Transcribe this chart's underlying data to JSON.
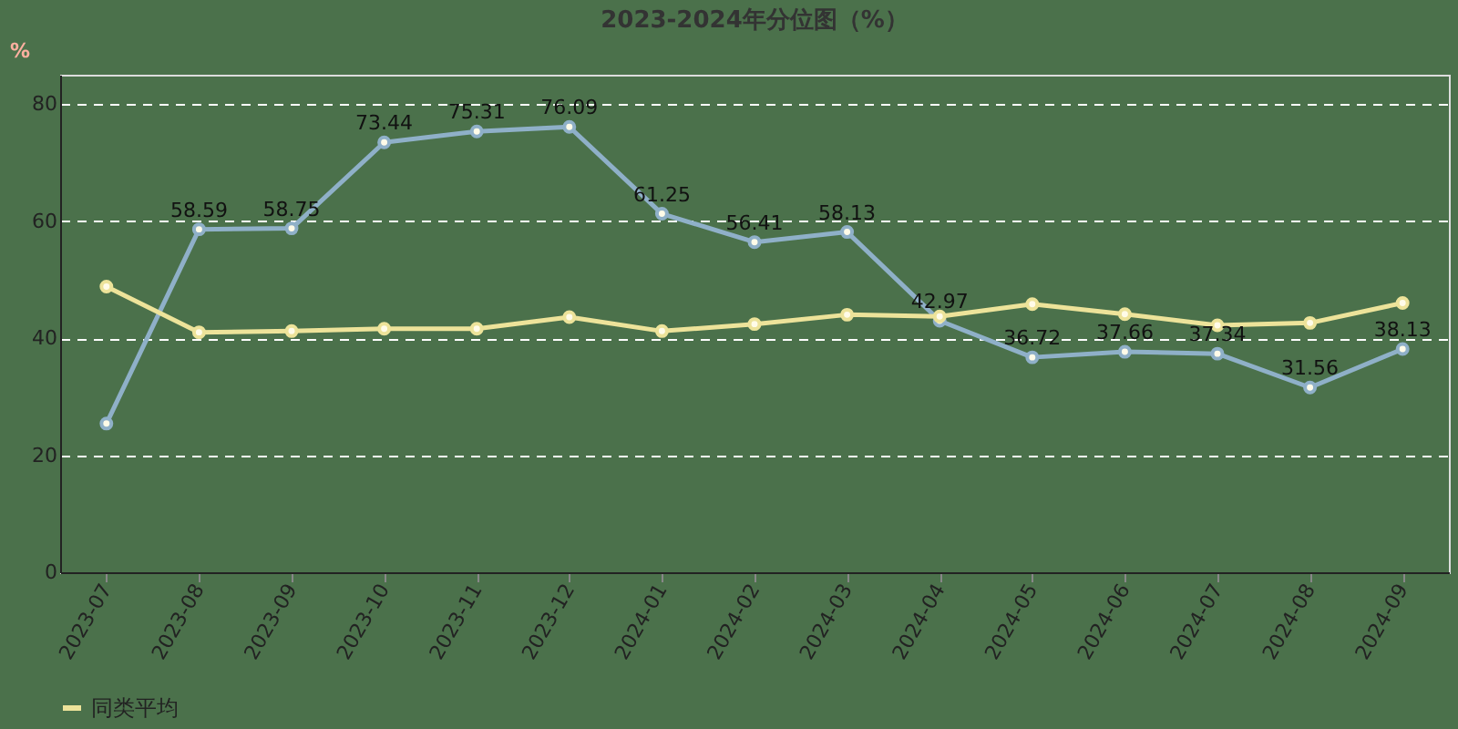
{
  "chart_data": {
    "type": "line",
    "title": "2023-2024年分位图（%）",
    "ylabel": "%",
    "categories": [
      "2023-07",
      "2023-08",
      "2023-09",
      "2023-10",
      "2023-11",
      "2023-12",
      "2024-01",
      "2024-02",
      "2024-03",
      "2024-04",
      "2024-05",
      "2024-06",
      "2024-07",
      "2024-08",
      "2024-09"
    ],
    "series": [
      {
        "color": "#8fb0c8",
        "values": [
          25.4,
          58.59,
          58.75,
          73.44,
          75.31,
          76.09,
          61.25,
          56.41,
          58.13,
          42.97,
          36.72,
          37.66,
          37.34,
          31.56,
          38.13
        ],
        "value_labels": [
          null,
          "58.59",
          "58.75",
          "73.44",
          "75.31",
          "76.09",
          "61.25",
          "56.41",
          "58.13",
          "42.97",
          "36.72",
          "37.66",
          "37.34",
          "31.56",
          "38.13"
        ]
      },
      {
        "name": "同类平均",
        "color": "#ede39a",
        "values": [
          48.8,
          41.0,
          41.2,
          41.6,
          41.6,
          43.6,
          41.2,
          42.4,
          44.0,
          43.7,
          45.8,
          44.1,
          42.2,
          42.6,
          46.0
        ]
      }
    ],
    "ylim": [
      0,
      85
    ],
    "yticks": [
      0,
      20,
      40,
      60,
      80
    ],
    "grid": "y",
    "legend": "bottom",
    "marker": "circle",
    "line_style": "solid"
  }
}
